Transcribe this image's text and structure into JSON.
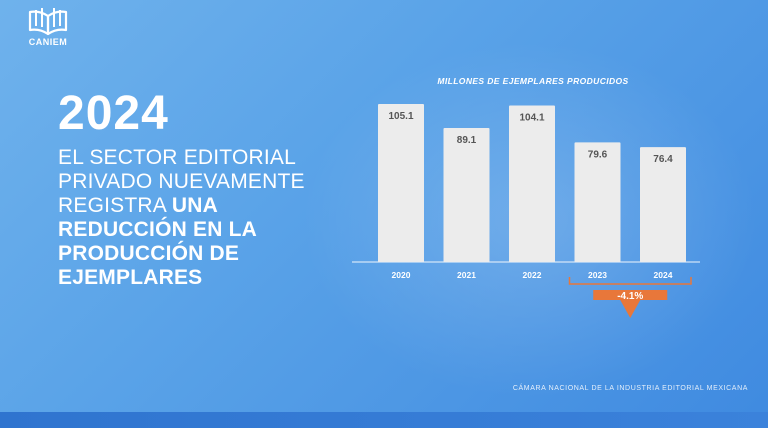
{
  "brand": {
    "name": "CANIEM"
  },
  "headline": {
    "year": "2024",
    "tagline_regular": "EL SECTOR EDITORIAL PRIVADO NUEVAMENTE REGISTRA",
    "tagline_bold": "UNA REDUCCIÓN EN LA PRODUCCIÓN DE EJEMPLARES"
  },
  "chart_data": {
    "type": "bar",
    "title": "MILLONES DE EJEMPLARES PRODUCIDOS",
    "categories": [
      "2020",
      "2021",
      "2022",
      "2023",
      "2024"
    ],
    "values": [
      105.1,
      89.1,
      104.1,
      79.6,
      76.4
    ],
    "value_labels": [
      "105.1",
      "89.1",
      "104.1",
      "79.6",
      "76.4"
    ],
    "ylim": [
      0,
      105.1
    ],
    "grid": false,
    "annotation": {
      "text": "-4.1%",
      "from": "2023",
      "to": "2024"
    },
    "colors": {
      "bar": "#ececec",
      "label": "#555555",
      "arrow": "#e8773a"
    }
  },
  "footer": {
    "text": "CÁMARA NACIONAL DE LA INDUSTRIA EDITORIAL MEXICANA"
  }
}
